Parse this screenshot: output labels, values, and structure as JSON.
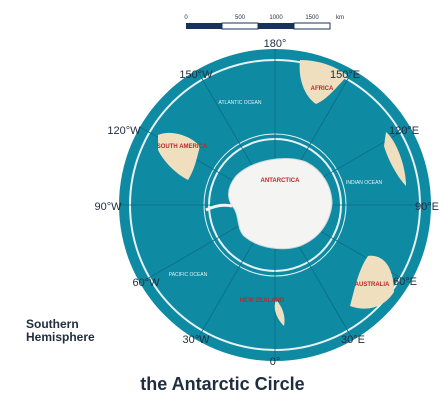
{
  "scale_bar": {
    "ticks": [
      "0",
      "500",
      "1000",
      "1500"
    ],
    "unit": "km"
  },
  "longitude_labels": {
    "top": "180°",
    "top_right": "150°E",
    "right_upper": "120°E",
    "right": "90°E",
    "right_lower": "60°E",
    "bottom_right": "30°E",
    "bottom": "0°",
    "bottom_left": "30°W",
    "left_lower": "60°W",
    "left": "90°W",
    "left_upper": "120°W",
    "top_left": "150°W"
  },
  "regions": {
    "antarctica": "ANTARCTICA",
    "south_america": "SOUTH AMERICA",
    "africa": "AFRICA",
    "new_zealand": "NEW ZEALAND",
    "australia": "AUSTRALIA"
  },
  "oceans": {
    "pacific": "PACIFIC OCEAN",
    "indian": "INDIAN OCEAN",
    "atlantic": "ATLANTIC OCEAN"
  },
  "legend_text": "Southern Hemisphere",
  "caption": "the Antarctic Circle",
  "colors": {
    "ocean": "#0f8aa3",
    "ocean_dark": "#0b7a93",
    "land": "#f0dfbf",
    "ice": "#f4f4f2",
    "circle_line": "#e6f2f6",
    "label_red": "#c0262b",
    "text_dark": "#1f2d3d"
  }
}
